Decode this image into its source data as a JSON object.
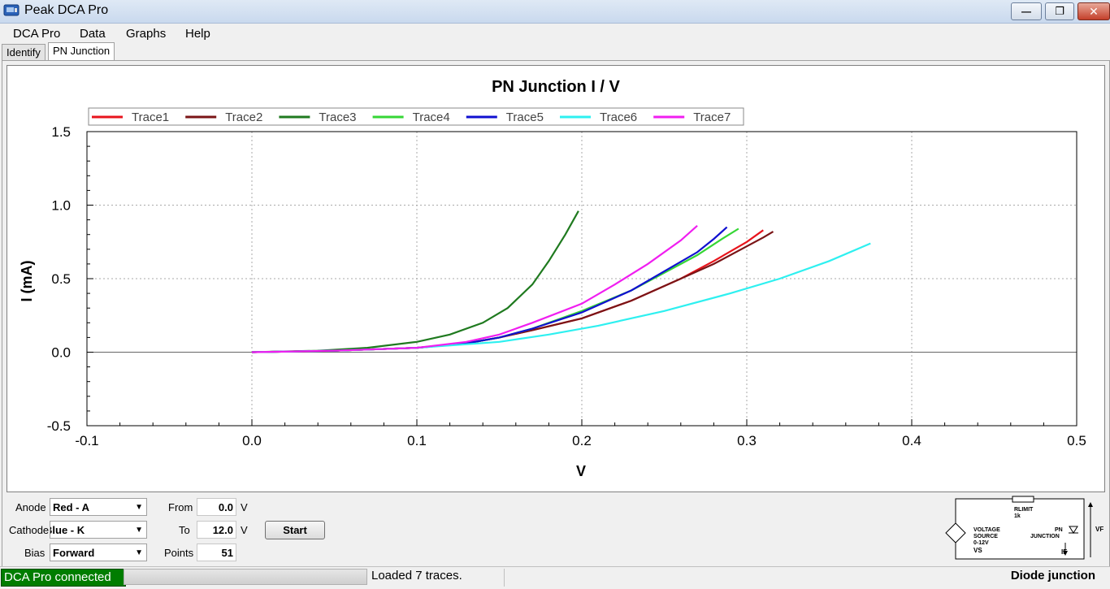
{
  "window": {
    "title": "Peak DCA Pro",
    "min_glyph": "—",
    "max_glyph": "❐",
    "close_glyph": "✕"
  },
  "menu": [
    "DCA Pro",
    "Data",
    "Graphs",
    "Help"
  ],
  "tabs": [
    {
      "label": "Identify",
      "active": false
    },
    {
      "label": "PN Junction",
      "active": true
    }
  ],
  "chart_data": {
    "type": "line",
    "title": "PN Junction I / V",
    "xlabel": "V",
    "ylabel": "I (mA)",
    "xlim": [
      -0.1,
      0.5
    ],
    "ylim": [
      -0.5,
      1.5
    ],
    "xticks": [
      "-0.1",
      "0.0",
      "0.1",
      "0.2",
      "0.3",
      "0.4",
      "0.5"
    ],
    "yticks": [
      "-0.5",
      "0.0",
      "0.5",
      "1.0",
      "1.5"
    ],
    "grid": true,
    "legend_position": "top",
    "series": [
      {
        "name": "Trace1",
        "color": "#e8141c",
        "x": [
          0,
          0.05,
          0.1,
          0.13,
          0.15,
          0.17,
          0.2,
          0.23,
          0.26,
          0.28,
          0.3,
          0.31
        ],
        "y": [
          0,
          0.01,
          0.03,
          0.06,
          0.1,
          0.15,
          0.23,
          0.35,
          0.5,
          0.62,
          0.75,
          0.83
        ]
      },
      {
        "name": "Trace2",
        "color": "#7a1416",
        "x": [
          0,
          0.05,
          0.1,
          0.13,
          0.15,
          0.17,
          0.2,
          0.23,
          0.26,
          0.28,
          0.3,
          0.31,
          0.316
        ],
        "y": [
          0,
          0.01,
          0.03,
          0.06,
          0.1,
          0.15,
          0.23,
          0.35,
          0.5,
          0.6,
          0.72,
          0.78,
          0.82
        ]
      },
      {
        "name": "Trace3",
        "color": "#1f7a1f",
        "x": [
          0,
          0.04,
          0.07,
          0.1,
          0.12,
          0.14,
          0.155,
          0.17,
          0.18,
          0.19,
          0.198
        ],
        "y": [
          0,
          0.01,
          0.03,
          0.07,
          0.12,
          0.2,
          0.3,
          0.46,
          0.62,
          0.8,
          0.96
        ]
      },
      {
        "name": "Trace4",
        "color": "#35d635",
        "x": [
          0,
          0.05,
          0.1,
          0.13,
          0.15,
          0.17,
          0.2,
          0.23,
          0.25,
          0.27,
          0.285,
          0.295
        ],
        "y": [
          0,
          0.01,
          0.03,
          0.06,
          0.1,
          0.16,
          0.28,
          0.42,
          0.54,
          0.66,
          0.77,
          0.84
        ]
      },
      {
        "name": "Trace5",
        "color": "#1010d0",
        "x": [
          0,
          0.05,
          0.1,
          0.13,
          0.15,
          0.17,
          0.2,
          0.23,
          0.25,
          0.27,
          0.28,
          0.288
        ],
        "y": [
          0,
          0.01,
          0.03,
          0.06,
          0.1,
          0.16,
          0.27,
          0.42,
          0.55,
          0.68,
          0.77,
          0.85
        ]
      },
      {
        "name": "Trace6",
        "color": "#2ef0f0",
        "x": [
          0,
          0.05,
          0.1,
          0.15,
          0.18,
          0.21,
          0.25,
          0.29,
          0.32,
          0.35,
          0.375
        ],
        "y": [
          0,
          0.01,
          0.03,
          0.07,
          0.12,
          0.18,
          0.28,
          0.4,
          0.5,
          0.62,
          0.74
        ]
      },
      {
        "name": "Trace7",
        "color": "#f01ef0",
        "x": [
          0,
          0.05,
          0.1,
          0.13,
          0.15,
          0.17,
          0.2,
          0.22,
          0.24,
          0.26,
          0.27
        ],
        "y": [
          0,
          0.01,
          0.03,
          0.07,
          0.12,
          0.2,
          0.33,
          0.46,
          0.6,
          0.76,
          0.86
        ]
      }
    ]
  },
  "controls": {
    "anode_label": "Anode",
    "anode_value": "Red - A",
    "cathode_label": "Cathode",
    "cathode_value": "Blue - K",
    "bias_label": "Bias",
    "bias_value": "Forward",
    "from_label": "From",
    "from_value": "0.0",
    "from_unit": "V",
    "to_label": "To",
    "to_value": "12.0",
    "to_unit": "V",
    "points_label": "Points",
    "points_value": "51",
    "start_label": "Start",
    "dropdown_glyph": "▼"
  },
  "schematic": {
    "rlimit": "RLIMIT",
    "rlimit_value": "1k",
    "source_line1": "VOLTAGE",
    "source_line2": "SOURCE",
    "source_line3": "0-12V",
    "vs": "VS",
    "pn_line1": "PN",
    "pn_line2": "JUNCTION",
    "if": "IF",
    "vf": "VF"
  },
  "status": {
    "connection": "DCA Pro connected",
    "message": "Loaded 7 traces.",
    "right": "Diode junction"
  }
}
